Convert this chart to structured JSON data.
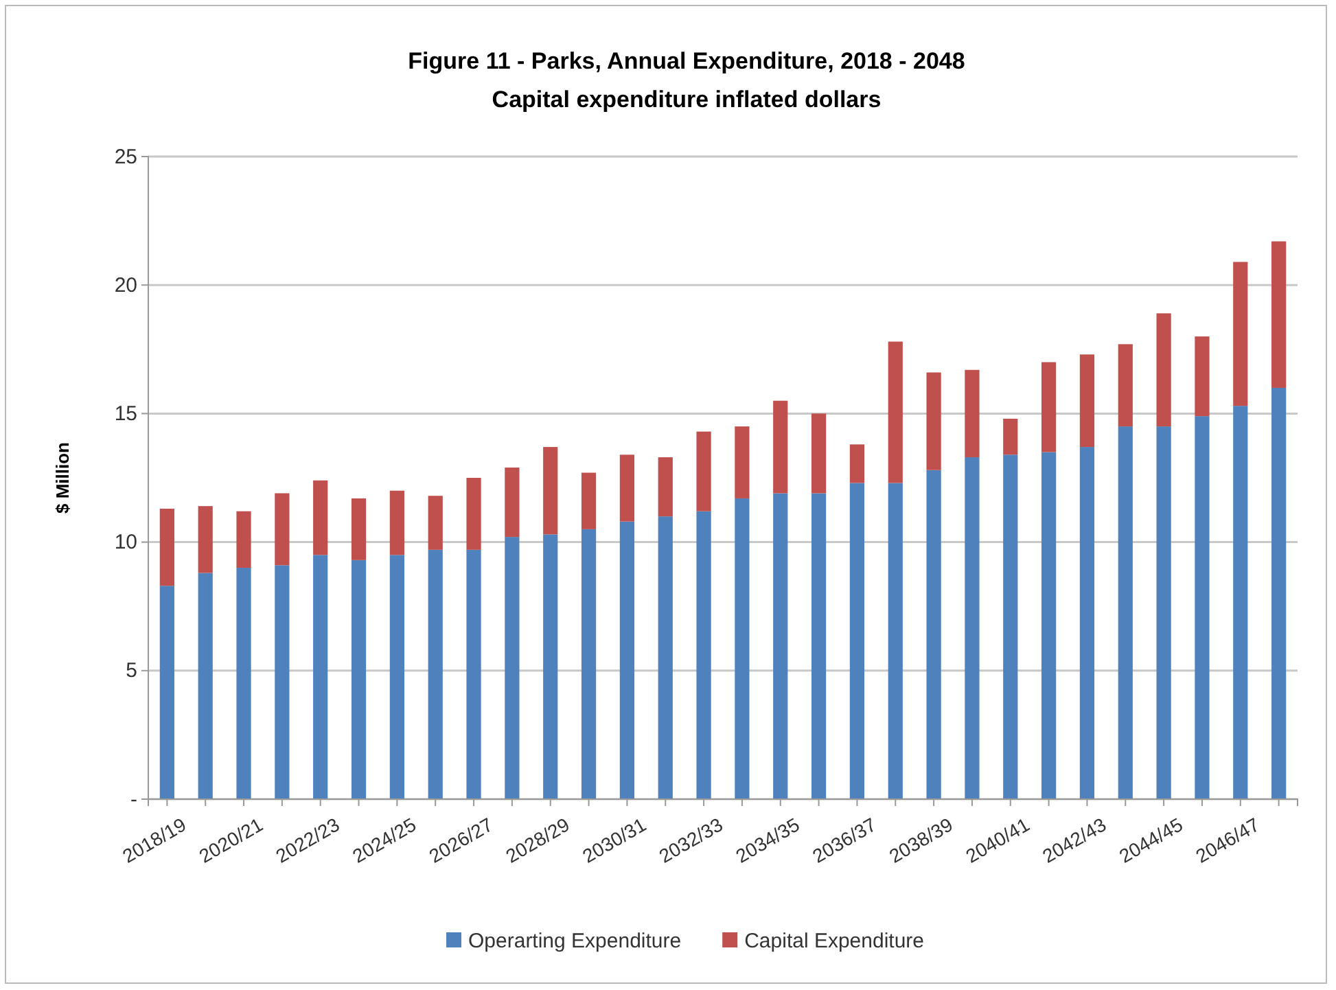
{
  "chart_data": {
    "type": "bar",
    "title": "Figure 11 - Parks, Annual Expenditure, 2018 - 2048",
    "subtitle": "Capital expenditure inflated dollars",
    "ylabel": "$ Million",
    "categories": [
      "2018/19",
      null,
      "2020/21",
      null,
      "2022/23",
      null,
      "2024/25",
      null,
      "2026/27",
      null,
      "2028/29",
      null,
      "2030/31",
      null,
      "2032/33",
      null,
      "2034/35",
      null,
      "2036/37",
      null,
      "2038/39",
      null,
      "2040/41",
      null,
      "2042/43",
      null,
      "2044/45",
      null,
      "2046/47",
      null
    ],
    "series": [
      {
        "name": "Operarting Expenditure",
        "color": "#4f81bd",
        "values": [
          8.3,
          8.8,
          9.0,
          9.1,
          9.5,
          9.3,
          9.5,
          9.7,
          9.7,
          10.2,
          10.3,
          10.5,
          10.8,
          11.0,
          11.2,
          11.7,
          11.9,
          11.9,
          12.3,
          12.3,
          12.8,
          13.3,
          13.4,
          13.5,
          13.7,
          14.5,
          14.5,
          14.9,
          15.3,
          16.0
        ]
      },
      {
        "name": "Capital Expenditure",
        "color": "#c0504d",
        "values": [
          3.0,
          2.6,
          2.2,
          2.8,
          2.9,
          2.4,
          2.5,
          2.1,
          2.8,
          2.7,
          3.4,
          2.2,
          2.6,
          2.3,
          3.1,
          2.8,
          3.6,
          3.1,
          1.5,
          5.5,
          3.8,
          3.4,
          1.4,
          3.5,
          3.6,
          3.2,
          4.4,
          3.1,
          5.6,
          5.7
        ]
      }
    ],
    "stacked": true,
    "ylim": [
      0,
      25
    ],
    "yticks": [
      {
        "value": 0,
        "label": "-"
      },
      5,
      10,
      15,
      20,
      25
    ],
    "grid": "y",
    "legend": "bottom"
  }
}
